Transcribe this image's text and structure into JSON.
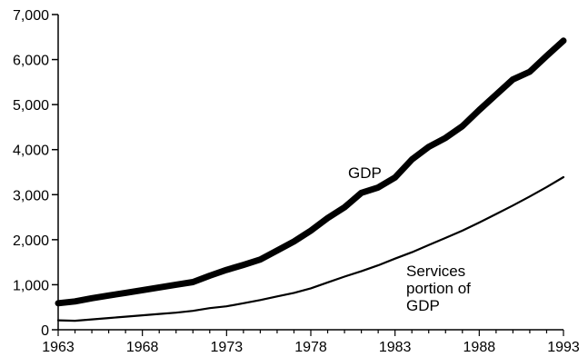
{
  "chart_data": {
    "type": "line",
    "title": "",
    "xlabel": "",
    "ylabel": "",
    "xlim": [
      1963,
      1993
    ],
    "ylim": [
      0,
      7000
    ],
    "x_ticks": [
      1963,
      1968,
      1973,
      1978,
      1983,
      1988,
      1993
    ],
    "x_tick_labels": [
      "1963",
      "1968",
      "1973",
      "1978",
      "1983",
      "1988",
      "1993"
    ],
    "y_ticks": [
      0,
      1000,
      2000,
      3000,
      4000,
      5000,
      6000,
      7000
    ],
    "y_tick_labels": [
      "0",
      "1,000",
      "2,000",
      "3,000",
      "4,000",
      "5,000",
      "6,000",
      "7,000"
    ],
    "grid": false,
    "legend": "none",
    "series": [
      {
        "name": "GDP",
        "color": "#000000",
        "x": [
          1963,
          1964,
          1965,
          1966,
          1967,
          1968,
          1969,
          1970,
          1971,
          1972,
          1973,
          1974,
          1975,
          1976,
          1977,
          1978,
          1979,
          1980,
          1981,
          1982,
          1983,
          1984,
          1985,
          1986,
          1987,
          1988,
          1989,
          1990,
          1991,
          1992,
          1993
        ],
        "values": [
          590,
          630,
          700,
          760,
          820,
          880,
          940,
          1000,
          1060,
          1200,
          1330,
          1440,
          1560,
          1760,
          1960,
          2200,
          2480,
          2720,
          3040,
          3160,
          3380,
          3780,
          4060,
          4260,
          4520,
          4880,
          5220,
          5560,
          5730,
          6080,
          6420
        ]
      },
      {
        "name": "Services portion of GDP",
        "color": "#000000",
        "x": [
          1963,
          1964,
          1965,
          1966,
          1967,
          1968,
          1969,
          1970,
          1971,
          1972,
          1973,
          1974,
          1975,
          1976,
          1977,
          1978,
          1979,
          1980,
          1981,
          1982,
          1983,
          1984,
          1985,
          1986,
          1987,
          1988,
          1989,
          1990,
          1991,
          1992,
          1993
        ],
        "values": [
          210,
          200,
          230,
          260,
          290,
          320,
          350,
          380,
          420,
          480,
          520,
          590,
          660,
          740,
          820,
          920,
          1050,
          1180,
          1300,
          1430,
          1580,
          1720,
          1880,
          2040,
          2200,
          2380,
          2570,
          2760,
          2960,
          3170,
          3390
        ]
      }
    ],
    "annotations": [
      {
        "series": 0,
        "text_lines": [
          "GDP"
        ]
      },
      {
        "series": 1,
        "text_lines": [
          "Services",
          "portion of",
          "GDP"
        ]
      }
    ]
  }
}
